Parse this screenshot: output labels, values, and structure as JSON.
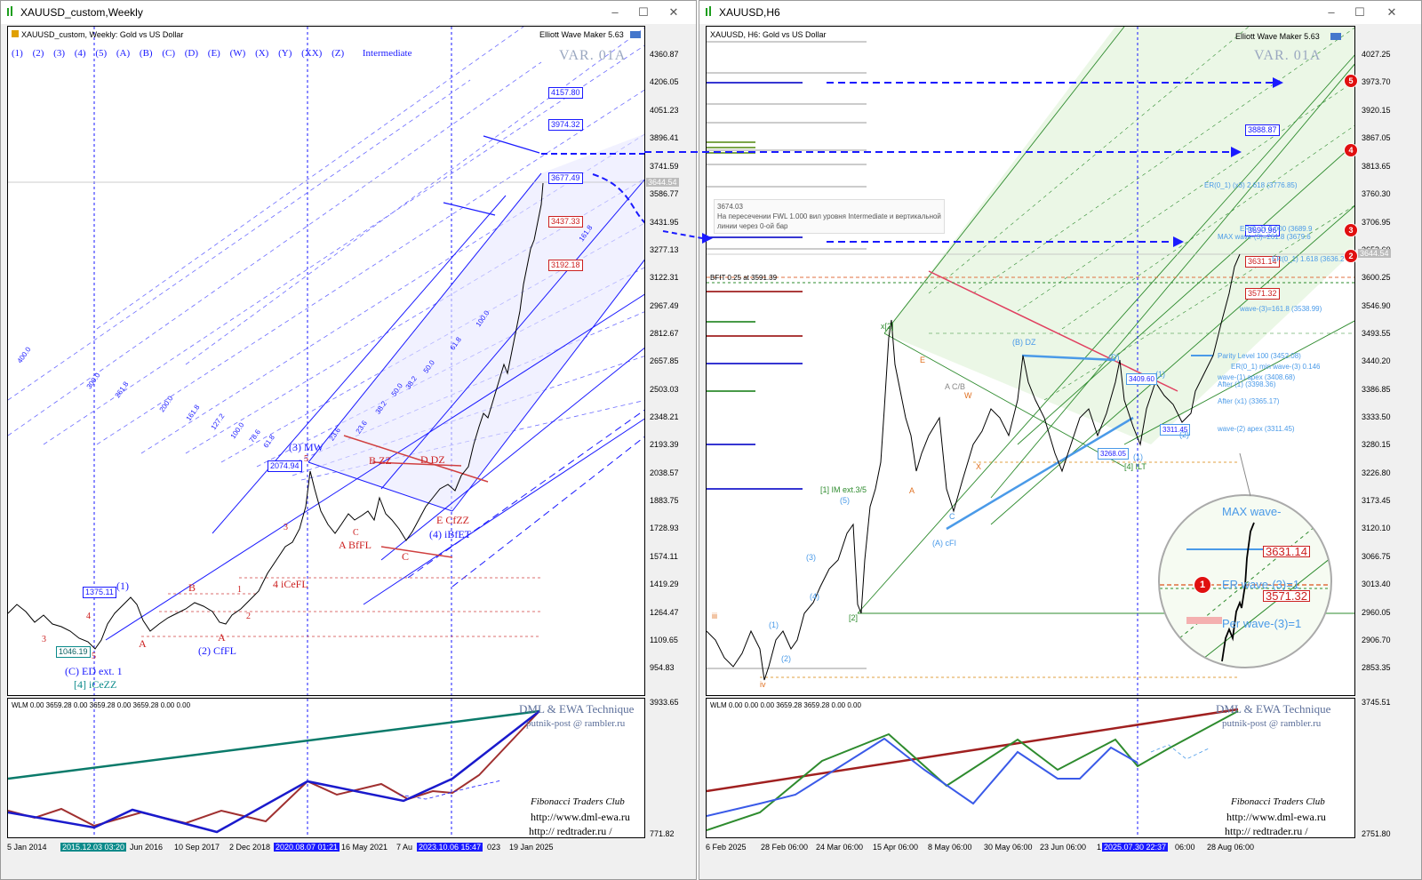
{
  "left_window": {
    "title": "XAUUSD_custom,Weekly",
    "chart_label": "XAUUSD_custom, Weekly:  Gold vs US Dollar",
    "indicator_label": "Elliott Wave Maker 5.63",
    "var_label": "VAR. 01A",
    "wave_buttons": [
      "(1)",
      "(2)",
      "(3)",
      "(4)",
      "(5)",
      "(A)",
      "(B)",
      "(C)",
      "(D)",
      "(E)",
      "(W)",
      "(X)",
      "(Y)",
      "(XX)",
      "(Z)"
    ],
    "degree_label": "Intermediate",
    "price_scale": [
      "4360.87",
      "4206.05",
      "4051.23",
      "3896.41",
      "3741.59",
      "3586.77",
      "3431.95",
      "3277.13",
      "3122.31",
      "2967.49",
      "2812.67",
      "2657.85",
      "2503.03",
      "2348.21",
      "2193.39",
      "2038.57",
      "1883.75",
      "1728.93",
      "1574.11",
      "1419.29",
      "1264.47",
      "1109.65",
      "954.83"
    ],
    "price_boxes_blue": [
      "4157.80",
      "3974.32",
      "3677.49"
    ],
    "price_boxes_red": [
      "3437.33",
      "3192.18"
    ],
    "current_price": "3644.54",
    "level_boxes": {
      "b2074": "2074.94",
      "b1375": "1375.11",
      "b1046": "1046.19"
    },
    "wave_labels": {
      "w3mw": "(3) MW",
      "w4ibfet": "(4) iBfET",
      "w2cffl": "(2) CfFL",
      "wced": "(C) ED ext. 1",
      "w4iceZZ": "[4] iCeZZ",
      "w1": "(1)",
      "w4icefl": "4 iCeFL",
      "wabffl": "A BfFL",
      "wbzz": "B ZZ",
      "wddz": "D DZ",
      "wecfzz": "E CfZZ",
      "wC": "C",
      "wB": "B",
      "wA": "A",
      "wA2": "A",
      "w5": "5",
      "w3": "3",
      "w1b": "1",
      "w2": "2",
      "w4": "4",
      "w3b": "3",
      "w5b": "5",
      "wCc": "C",
      "wc2": "C"
    },
    "fib_labels": [
      "400.0",
      "300.0",
      "261.8",
      "200.0",
      "161.8",
      "127.2",
      "100.0",
      "78.6",
      "61.8",
      "50.0",
      "38.2",
      "23.6",
      "161.8",
      "100.0",
      "61.8",
      "50.0",
      "38.2",
      "23.6"
    ],
    "sub_indicator": "WLM 0.00 3659.28 0.00 3659.28 0.00 3659.28 0.00 0.00",
    "sub_scale": [
      "3933.65",
      "771.82"
    ],
    "time_scale": [
      "5 Jan 2014",
      "Jun 2016",
      "10 Sep 2017",
      "2 Dec 2018",
      "16 May 2021",
      "7 Au",
      "19 Jan 2025"
    ],
    "time_highlights": [
      "2015.12.03 03:20",
      "2020.08.07 01:21",
      "2023.10.06 15:47"
    ],
    "time_after_hl": "023",
    "watermark": {
      "technique": "DML & EWA Technique",
      "email": "putnik-post @ rambler.ru",
      "club": "Fibonacci     Traders     Club",
      "url1": "http://www.dml-ewa.ru",
      "url2": "http://  redtrader.ru  /"
    }
  },
  "right_window": {
    "title": "XAUUSD,H6",
    "chart_label": "XAUUSD, H6:  Gold vs US Dollar",
    "indicator_label": "Elliott Wave Maker 5.63",
    "var_label": "VAR. 01A",
    "price_scale": [
      "4027.25",
      "3973.70",
      "3920.15",
      "3867.05",
      "3813.65",
      "3760.30",
      "3706.95",
      "3653.60",
      "3600.25",
      "3546.90",
      "3493.55",
      "3440.20",
      "3386.85",
      "3333.50",
      "3280.15",
      "3226.80",
      "3173.45",
      "3120.10",
      "3066.75",
      "3013.40",
      "2960.05",
      "2906.70",
      "2853.35"
    ],
    "current_price": "3644.54",
    "boxes_blue": [
      "3888.87",
      "3690.96"
    ],
    "boxes_red": [
      "3631.14",
      "3571.32"
    ],
    "boxes_small": [
      "3409.60",
      "3311.45",
      "3268.05"
    ],
    "note": {
      "l1": "3674.03",
      "l2": "На пересечении FWL 1.000 вил уровня Intermediate и вертикальной",
      "l3": "линии через 0-ой бар"
    },
    "bfit": "BFIT 0.25 at 3591.39",
    "fib_text": {
      "t1": "ER(0_1) (x3) 2.618 (3776.85)",
      "t2": "ER(0_1) 1.618 (3636.2",
      "t3": "MAX wave-(3)=261.8 (3679.6",
      "t4": "wave-(3)=161.8 (3538.99)",
      "t5": "Parity Level 100 (3452.08)",
      "t6": "ER(0_1) min wave-(3) 0.146",
      "t7": "wave-(1) apex (3408.68)",
      "t8": "After (1) (3398.36)",
      "t9": "After (x1) (3365.17)",
      "t10": "wave-(2) apex (3311.45)",
      "t11": "ER(0_1) 2.000 (3689.9"
    },
    "wave_labels": {
      "iii": "iii",
      "iv": "iv",
      "x2": "x[2]",
      "w1ex": "[1] IM ext.3/5",
      "bdz": "(B) DZ",
      "acfi": "(A) cFI",
      "w4itt": "[4] ILT",
      "E": "E",
      "A": "A",
      "X": "X",
      "W": "W",
      "C": "C",
      "AC": "A C/B",
      "D": "(D)",
      "one": "(1)",
      "two": "(2)",
      "oneb": "(1)",
      "five": "(5)",
      "three": "(3)",
      "four": "(4)",
      "two2": "[2]",
      "one2": "(1)",
      "two3": "(2)"
    },
    "circle_marks": [
      "5",
      "4",
      "3",
      "2",
      "1"
    ],
    "zoom_labels": {
      "max": "MAX wave-",
      "b1": "3631.14",
      "b2": "3571.32",
      "w": "ER wave-(3)=1",
      "w2": "Per wave-(3)=1"
    },
    "sub_indicator": "WLM 0.00 0.00 0.00 3659.28 3659.28 0.00 0.00",
    "sub_scale": [
      "3745.51",
      "2751.80"
    ],
    "time_scale": [
      "6 Feb 2025",
      "28 Feb 06:00",
      "24 Mar 06:00",
      "15 Apr 06:00",
      "8 May 06:00",
      "30 May 06:00",
      "23 Jun 06:00",
      "1",
      "06:00",
      "28 Aug 06:00"
    ],
    "time_highlight": "2025.07.30 22:37",
    "watermark": {
      "technique": "DML & EWA Technique",
      "email": "putnik-post @ rambler.ru",
      "club": "Fibonacci     Traders     Club",
      "url1": "http://www.dml-ewa.ru",
      "url2": "http://  redtrader.ru  /"
    }
  },
  "colors": {
    "blue": "#1a1aff",
    "red": "#cc2020",
    "teal": "#0a8a8a",
    "green": "#2e8b2e"
  }
}
